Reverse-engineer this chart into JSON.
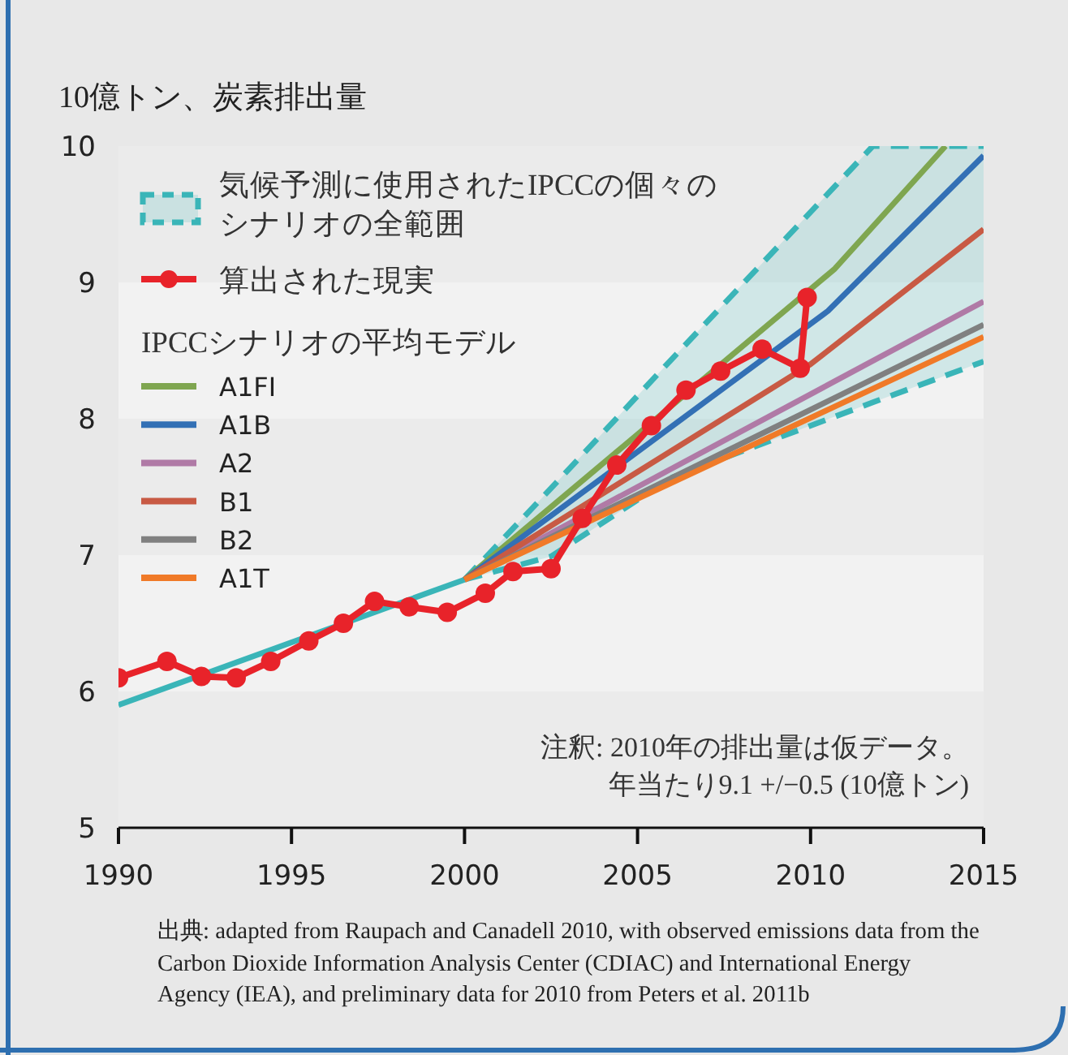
{
  "chart_data": {
    "type": "line",
    "ylabel": "10億トン、炭素排出量",
    "legend_title": "IPCCシナリオの平均モデル",
    "legend": "top left",
    "xlim": [
      1990,
      2015
    ],
    "xticks": [
      1990,
      1995,
      2000,
      2005,
      2010,
      2015
    ],
    "ylim": [
      5,
      10
    ],
    "yticks": [
      5,
      6,
      7,
      8,
      9,
      10
    ],
    "series": [
      {
        "type": "area",
        "name": "気候予測に使用されたIPCCの個々のシナリオの全範囲",
        "color": "#3ab5b8",
        "line_style": "dashed",
        "x": [
          2000,
          2002.5,
          2006,
          2011.8,
          2015
        ],
        "values": [
          6.82,
          7.49,
          8.44,
          10,
          10
        ]
      },
      {
        "color": "#3ab5b8",
        "line_style": "dashed",
        "x": [
          2000,
          2002.5,
          2006,
          2011.8,
          2015
        ],
        "values": [
          6.82,
          6.99,
          7.57,
          8.12,
          8.42
        ]
      },
      {
        "color": "#3ab5b8",
        "x": [
          1990,
          2000
        ],
        "values": [
          5.9,
          6.82
        ]
      },
      {
        "name": "A1FI",
        "color": "#7fa650",
        "x": [
          2000,
          2010.7,
          2013.9
        ],
        "values": [
          6.82,
          9.1,
          10
        ]
      },
      {
        "name": "A1B",
        "color": "#3370b5",
        "x": [
          2000,
          2010.5,
          2015
        ],
        "values": [
          6.82,
          8.79,
          9.93
        ]
      },
      {
        "name": "A2",
        "color": "#b07aa6",
        "x": [
          2000,
          2015
        ],
        "values": [
          6.82,
          8.86
        ]
      },
      {
        "name": "B1",
        "color": "#c85a44",
        "x": [
          2000,
          2010,
          2015
        ],
        "values": [
          6.82,
          8.4,
          9.39
        ]
      },
      {
        "name": "B2",
        "color": "#808080",
        "x": [
          2000,
          2015
        ],
        "values": [
          6.82,
          8.69
        ]
      },
      {
        "name": "A1T",
        "color": "#f07a28",
        "x": [
          2000,
          2015
        ],
        "values": [
          6.82,
          8.6
        ]
      },
      {
        "name": "算出された現実",
        "color": "#e8232a",
        "marker": "circle",
        "x": [
          1990,
          1991.4,
          1992.4,
          1993.4,
          1994.4,
          1995.5,
          1996.5,
          1997.4,
          1998.4,
          1999.5,
          2000.6,
          2001.4,
          2002.5,
          2003.4,
          2004.4,
          2005.4,
          2006.4,
          2007.4,
          2008.6,
          2009.7,
          2009.9
        ],
        "values": [
          6.1,
          6.22,
          6.11,
          6.1,
          6.22,
          6.37,
          6.5,
          6.66,
          6.62,
          6.58,
          6.72,
          6.88,
          6.9,
          7.27,
          7.66,
          7.95,
          8.21,
          8.35,
          8.51,
          8.37,
          8.89
        ]
      }
    ],
    "annotations": [
      "注釈: 2010年の排出量は仮データ。",
      "年当たり9.1 +/−0.5 (10億トン)",
      "出典:  adapted from Raupach and Canadell 2010, with observed emissions data from the Carbon Dioxide Information Analysis Center (CDIAC) and International Energy Agency (IEA), and preliminary data for 2010 from Peters et al. 2011b"
    ]
  }
}
